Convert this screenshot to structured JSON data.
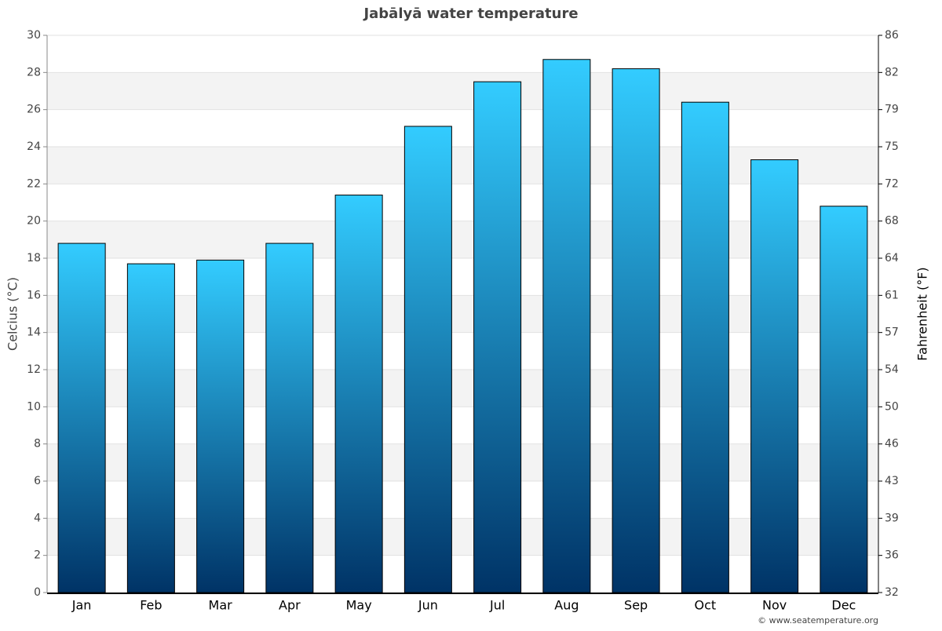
{
  "chart_data": {
    "type": "bar",
    "title": "Jabālyā water temperature",
    "y_label": "Celcius (°C)",
    "y2_label": "Fahrenheit (°F)",
    "source": "© www.seatemperature.org",
    "categories": [
      "Jan",
      "Feb",
      "Mar",
      "Apr",
      "May",
      "Jun",
      "Jul",
      "Aug",
      "Sep",
      "Oct",
      "Nov",
      "Dec"
    ],
    "values": [
      18.8,
      17.7,
      17.9,
      18.8,
      21.4,
      25.1,
      27.5,
      28.7,
      28.2,
      26.4,
      23.3,
      20.8
    ],
    "color": [
      "#33ccff",
      "#003366"
    ],
    "ylim": [
      0,
      30
    ],
    "yticks": [
      0,
      2,
      4,
      6,
      8,
      10,
      12,
      14,
      16,
      18,
      20,
      22,
      24,
      26,
      28,
      30
    ],
    "y2lim": [
      32,
      86
    ],
    "y2ticks": [
      32,
      {
        "value": 35.6,
        "label": "36"
      },
      {
        "value": 39.2,
        "label": "39"
      },
      {
        "value": 42.8,
        "label": "43"
      },
      {
        "value": 46.4,
        "label": "46"
      },
      50,
      {
        "value": 53.6,
        "label": "54"
      },
      {
        "value": 57.2,
        "label": "57"
      },
      {
        "value": 60.8,
        "label": "61"
      },
      {
        "value": 64.4,
        "label": "64"
      },
      68,
      {
        "value": 71.6,
        "label": "72"
      },
      {
        "value": 75.2,
        "label": "75"
      },
      {
        "value": 78.8,
        "label": "79"
      },
      {
        "value": 82.4,
        "label": "82"
      },
      86
    ],
    "grid": true
  }
}
